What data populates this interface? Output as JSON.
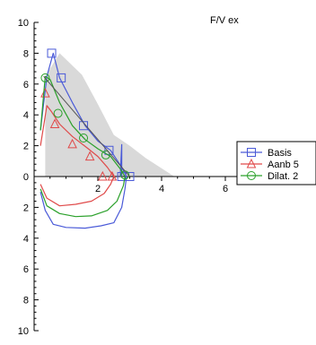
{
  "chart_data": {
    "type": "line",
    "title": "F/V ex",
    "xlabel": "",
    "ylabel": "",
    "xlim": [
      0,
      7.5
    ],
    "ylim": [
      -10,
      10
    ],
    "x_ticks": [
      2,
      4,
      6
    ],
    "y_ticks": [
      10,
      8,
      6,
      4,
      2,
      0,
      -2,
      -4,
      -6,
      -8,
      -10
    ],
    "y_tick_labels": [
      "10",
      "8",
      "6",
      "4",
      "2",
      "0",
      "2",
      "4",
      "6",
      "8",
      "10"
    ],
    "grid": false,
    "legend_position": "right",
    "band": {
      "color": "#d9d9d9",
      "upper": [
        [
          0.35,
          6.5
        ],
        [
          0.8,
          8.0
        ],
        [
          1.5,
          6.6
        ],
        [
          2.0,
          4.7
        ],
        [
          2.5,
          2.7
        ],
        [
          3.0,
          2.0
        ],
        [
          3.5,
          1.2
        ],
        [
          4.4,
          0.0
        ]
      ],
      "lower": [
        [
          0.35,
          0.0
        ]
      ]
    },
    "series": [
      {
        "name": "Basis",
        "color": "#4a5ad8",
        "marker": "square",
        "expiration": [
          [
            0.2,
            3.0
          ],
          [
            0.4,
            6.5
          ],
          [
            0.6,
            8.0
          ],
          [
            0.8,
            6.4
          ],
          [
            1.2,
            4.8
          ],
          [
            1.6,
            3.3
          ],
          [
            2.0,
            2.3
          ],
          [
            2.4,
            1.7
          ],
          [
            2.75,
            0.6
          ],
          [
            2.9,
            0.0
          ]
        ],
        "inspiration": [
          [
            0.2,
            -1.0
          ],
          [
            0.35,
            -2.2
          ],
          [
            0.6,
            -3.1
          ],
          [
            1.0,
            -3.3
          ],
          [
            1.6,
            -3.35
          ],
          [
            2.1,
            -3.2
          ],
          [
            2.5,
            -3.0
          ],
          [
            2.75,
            -2.0
          ],
          [
            2.85,
            -0.8
          ],
          [
            2.9,
            0.0
          ]
        ],
        "markers": [
          [
            0.55,
            8.0
          ],
          [
            0.85,
            6.4
          ],
          [
            1.55,
            3.3
          ],
          [
            2.35,
            1.7
          ],
          [
            2.75,
            0.0
          ],
          [
            3.0,
            0.0
          ]
        ],
        "spike": [
          [
            2.7,
            0.0
          ],
          [
            2.75,
            2.1
          ],
          [
            2.75,
            0.0
          ]
        ]
      },
      {
        "name": "Aanb 5",
        "color": "#e04a4a",
        "marker": "triangle",
        "expiration": [
          [
            0.2,
            2.0
          ],
          [
            0.4,
            4.6
          ],
          [
            0.55,
            4.2
          ],
          [
            0.8,
            3.4
          ],
          [
            1.2,
            2.6
          ],
          [
            1.7,
            1.8
          ],
          [
            2.0,
            1.3
          ],
          [
            2.3,
            0.6
          ],
          [
            2.5,
            0.0
          ]
        ],
        "inspiration": [
          [
            0.2,
            -0.5
          ],
          [
            0.4,
            -1.4
          ],
          [
            0.8,
            -1.9
          ],
          [
            1.3,
            -1.8
          ],
          [
            1.8,
            -1.6
          ],
          [
            2.2,
            -1.1
          ],
          [
            2.4,
            -0.5
          ],
          [
            2.5,
            0.0
          ]
        ],
        "markers": [
          [
            0.35,
            5.4
          ],
          [
            0.65,
            3.4
          ],
          [
            1.2,
            2.1
          ],
          [
            1.75,
            1.3
          ],
          [
            2.15,
            0.0
          ],
          [
            2.45,
            0.0
          ]
        ]
      },
      {
        "name": "Dilat. 2",
        "color": "#2aa02a",
        "marker": "circle",
        "expiration": [
          [
            0.2,
            3.0
          ],
          [
            0.35,
            6.5
          ],
          [
            0.5,
            6.3
          ],
          [
            0.8,
            4.8
          ],
          [
            1.2,
            3.3
          ],
          [
            1.6,
            2.4
          ],
          [
            2.0,
            1.8
          ],
          [
            2.4,
            1.3
          ],
          [
            2.7,
            0.5
          ],
          [
            2.85,
            0.0
          ]
        ],
        "inspiration": [
          [
            0.2,
            -0.8
          ],
          [
            0.4,
            -1.9
          ],
          [
            0.8,
            -2.4
          ],
          [
            1.3,
            -2.6
          ],
          [
            1.8,
            -2.55
          ],
          [
            2.3,
            -2.2
          ],
          [
            2.6,
            -1.6
          ],
          [
            2.8,
            -0.6
          ],
          [
            2.85,
            0.0
          ]
        ],
        "markers": [
          [
            0.35,
            6.4
          ],
          [
            0.75,
            4.1
          ],
          [
            1.55,
            2.5
          ],
          [
            2.25,
            1.4
          ],
          [
            2.85,
            0.1
          ]
        ]
      }
    ],
    "trend_line": {
      "color": "#555555",
      "points": [
        [
          0.3,
          6.5
        ],
        [
          3.0,
          0.0
        ]
      ]
    }
  }
}
